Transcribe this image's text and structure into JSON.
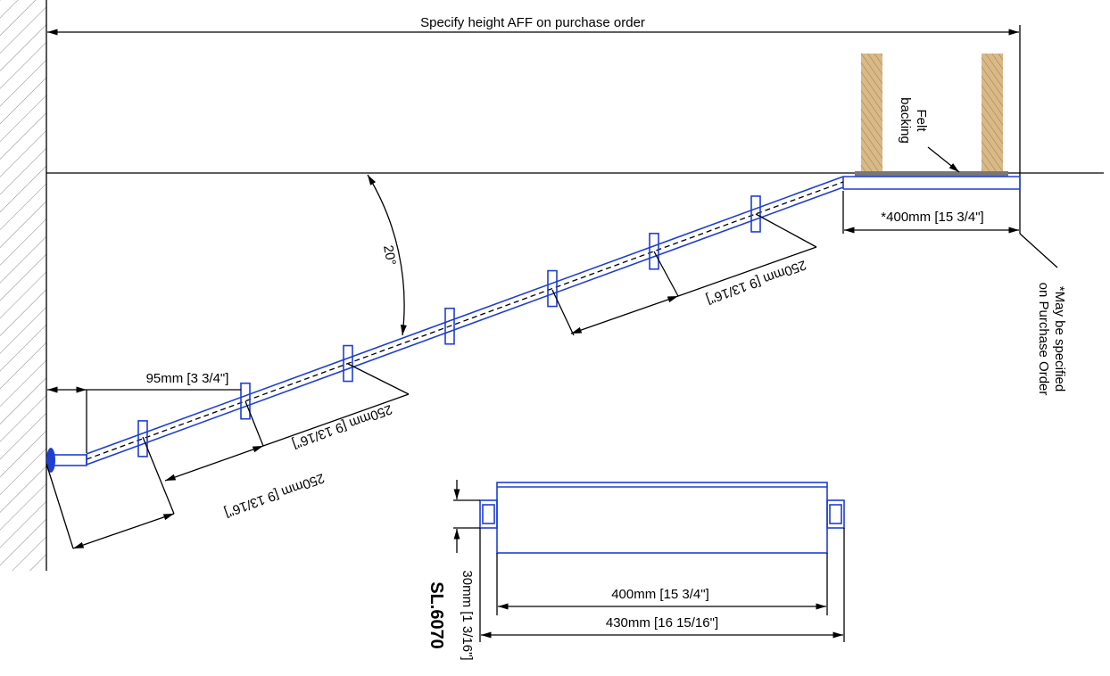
{
  "header": {
    "title": "Specify height AFF on purchase order"
  },
  "labels": {
    "felt": [
      "Felt",
      "backing"
    ],
    "platform_length": "*400mm [15 3/4\"]",
    "note": [
      "*May be specified",
      "on Purchase Order"
    ],
    "angle": "20°",
    "spacing": [
      "250mm [9 13/16\"]",
      "250mm [9 13/16\"]",
      "250mm [9 13/16\"]"
    ],
    "wall_offset": "95mm [3 3/4\"]",
    "inner_width": "400mm [15 3/4\"]",
    "outer_width": "430mm [16 15/16\"]",
    "depth": "30mm [1 3/16\"]",
    "model": "SL.6070"
  }
}
